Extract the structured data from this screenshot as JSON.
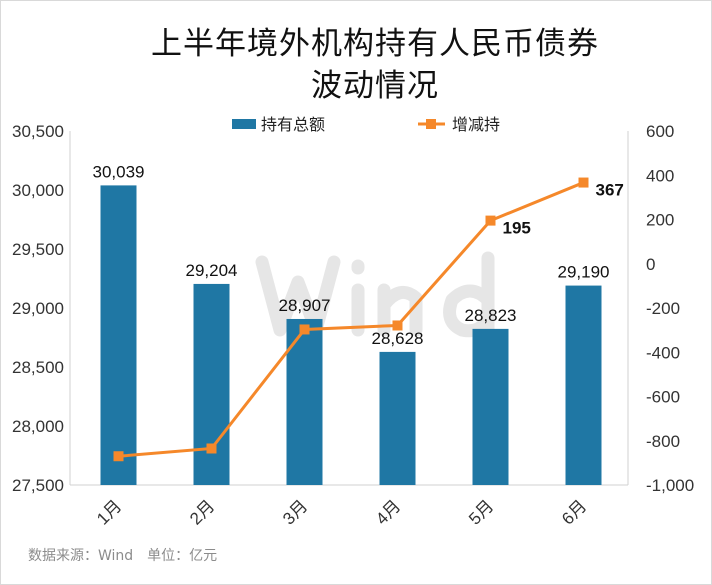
{
  "title_line1": "上半年境外机构持有人民币债券",
  "title_line2": "波动情况",
  "footer": "数据来源：Wind　单位：亿元",
  "watermark": "Wind",
  "colors": {
    "bar": "#1f77a4",
    "line": "#f5882a"
  },
  "chart_data": {
    "type": "bar+line",
    "categories": [
      "1月",
      "2月",
      "3月",
      "4月",
      "5月",
      "6月"
    ],
    "series": [
      {
        "name": "持有总额",
        "type": "bar",
        "axis": "left",
        "values": [
          30039,
          29204,
          28907,
          28628,
          28823,
          29190
        ],
        "labels": [
          "30,039",
          "29,204",
          "28,907",
          "28,628",
          "28,823",
          "29,190"
        ]
      },
      {
        "name": "增减持",
        "type": "line",
        "axis": "right",
        "values": [
          -870,
          -835,
          -297,
          -279,
          195,
          367
        ],
        "labels": [
          "",
          "",
          "",
          "",
          "195",
          "367"
        ]
      }
    ],
    "left_axis": {
      "ylim": [
        27500,
        30500
      ],
      "ticks": [
        "27,500",
        "28,000",
        "28,500",
        "29,000",
        "29,500",
        "30,000",
        "30,500"
      ],
      "tick_values": [
        27500,
        28000,
        28500,
        29000,
        29500,
        30000,
        30500
      ]
    },
    "right_axis": {
      "ylim": [
        -1000,
        600
      ],
      "ticks": [
        "-1,000",
        "-800",
        "-600",
        "-400",
        "-200",
        "0",
        "200",
        "400",
        "600"
      ],
      "tick_values": [
        -1000,
        -800,
        -600,
        -400,
        -200,
        0,
        200,
        400,
        600
      ]
    },
    "legend_position": "top",
    "grid": false
  }
}
